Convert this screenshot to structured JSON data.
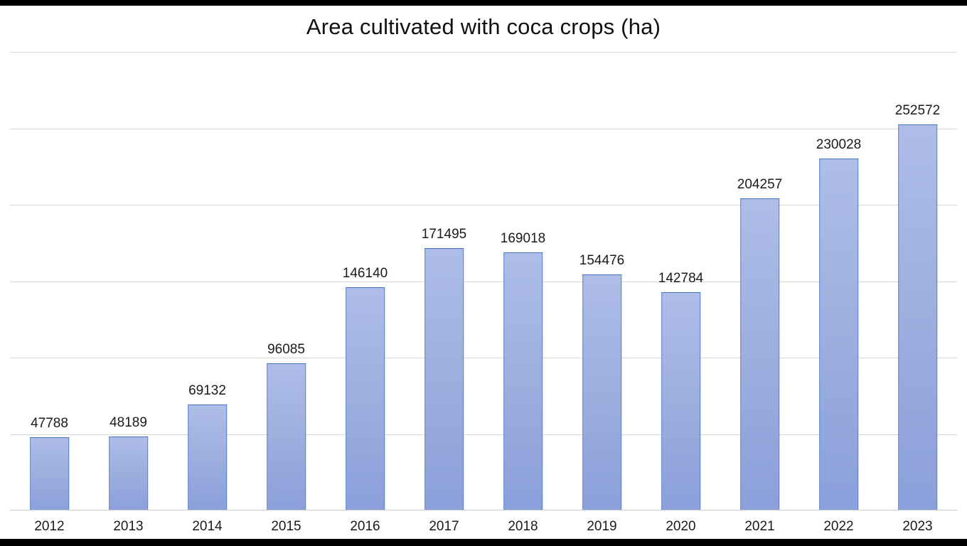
{
  "frame": {
    "color": "#000000"
  },
  "chart_data": {
    "type": "bar",
    "title": "Area cultivated with coca crops (ha)",
    "categories": [
      "2012",
      "2013",
      "2014",
      "2015",
      "2016",
      "2017",
      "2018",
      "2019",
      "2020",
      "2021",
      "2022",
      "2023"
    ],
    "values": [
      47788,
      48189,
      69132,
      96085,
      146140,
      171495,
      169018,
      154476,
      142784,
      204257,
      230028,
      252572
    ],
    "xlabel": "",
    "ylabel": "",
    "ylim": [
      0,
      300000
    ],
    "gridline_step": 50000,
    "grid": true,
    "legend": false,
    "data_labels": true,
    "y_axis_tick_labels_visible": false,
    "colors": {
      "bar_fill_top": "#aebde8",
      "bar_fill_bottom": "#8b9fdb",
      "bar_border": "#4472c4",
      "gridline": "#d9d9d9",
      "axis_line": "#c9c9c9",
      "title_text": "#111111",
      "label_text": "#1a1a1a"
    }
  }
}
